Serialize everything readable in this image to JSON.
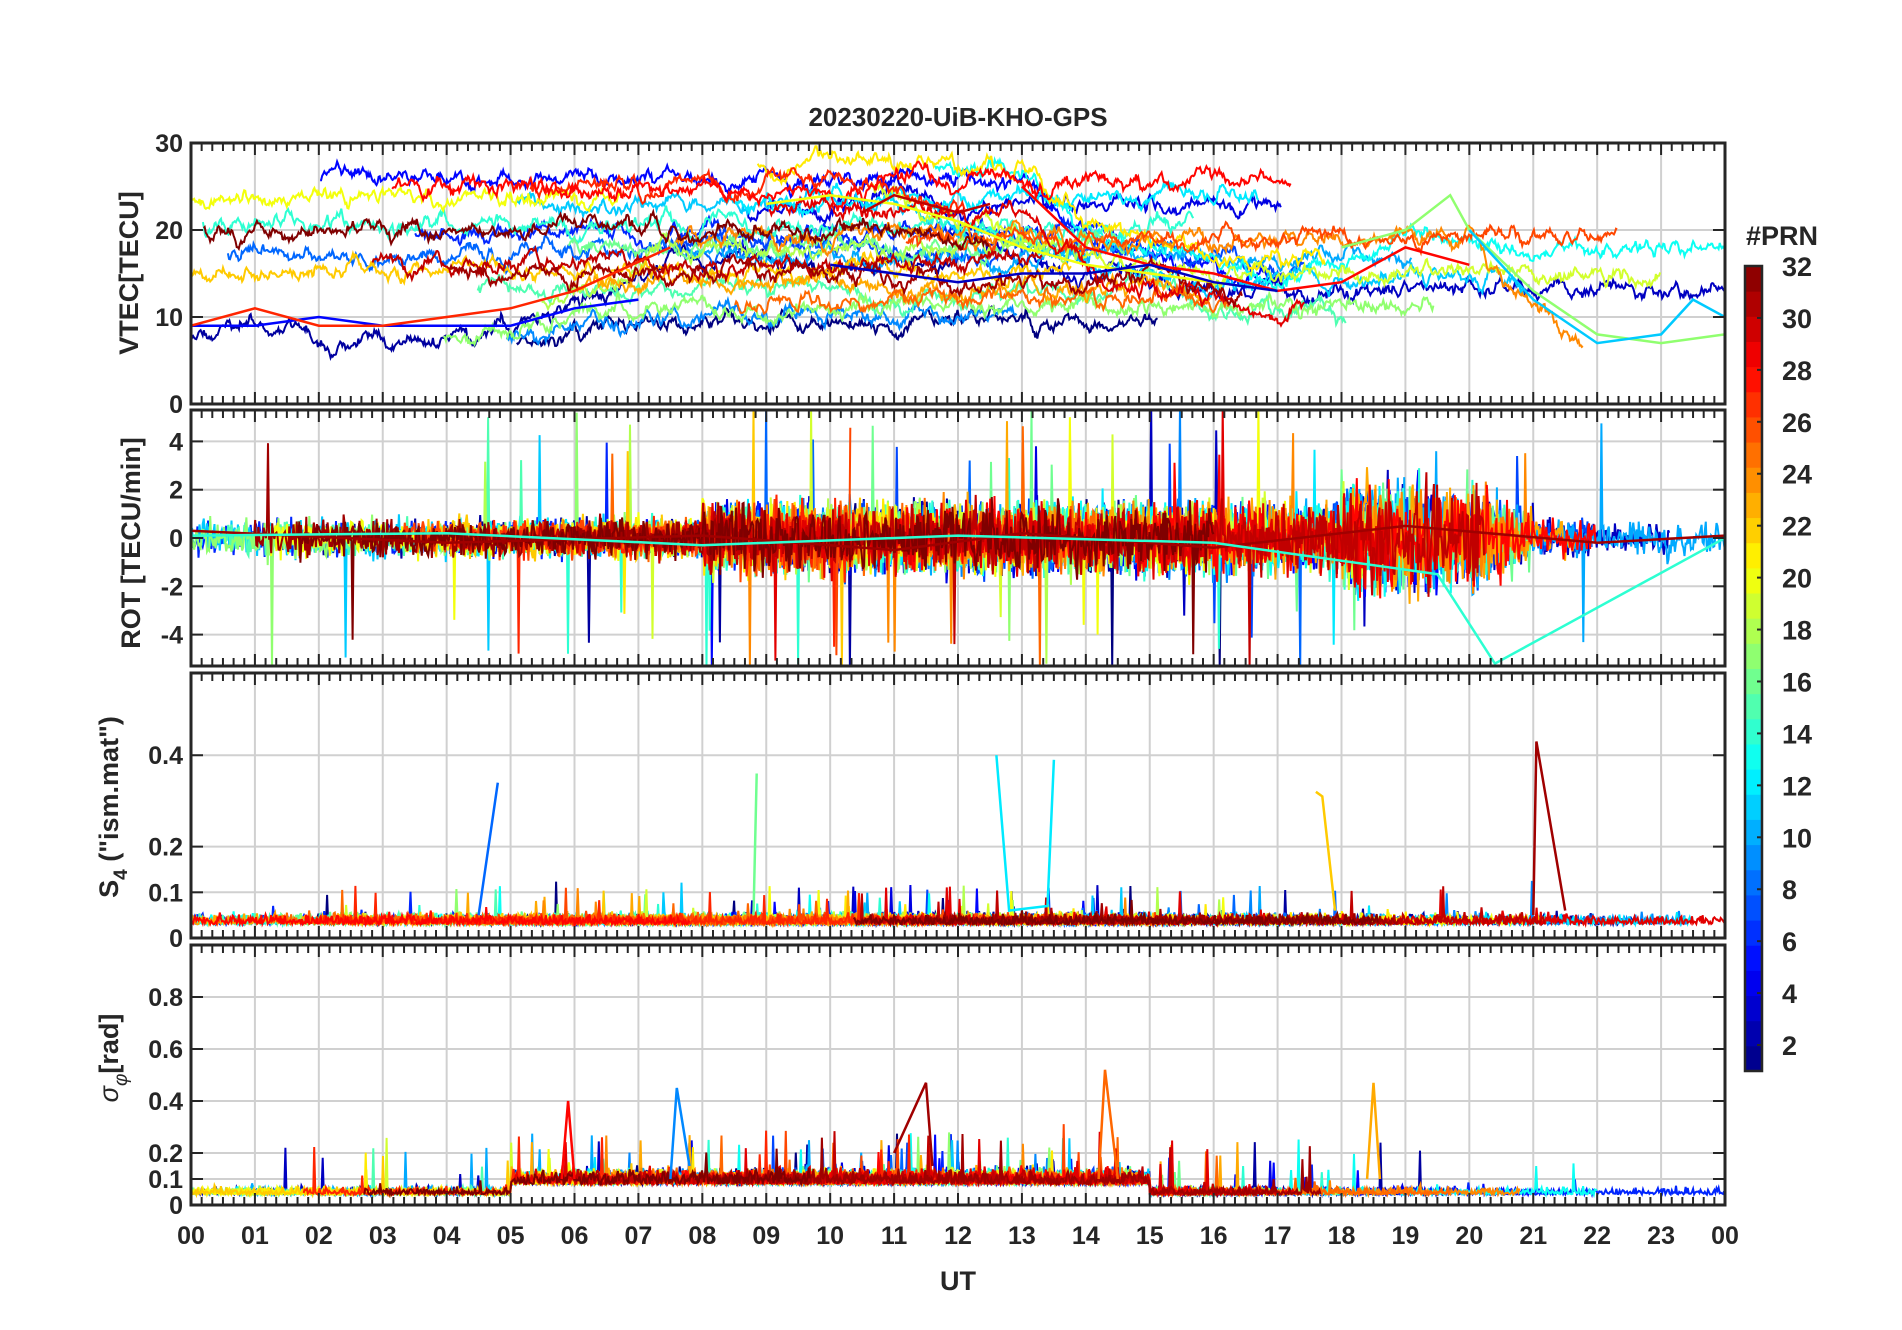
{
  "figure_title": "20230220-UiB-KHO-GPS",
  "x_axis": {
    "label": "UT",
    "ticks": [
      "00",
      "01",
      "02",
      "03",
      "04",
      "05",
      "06",
      "07",
      "08",
      "09",
      "10",
      "11",
      "12",
      "13",
      "14",
      "15",
      "16",
      "17",
      "18",
      "19",
      "20",
      "21",
      "22",
      "23",
      "00"
    ],
    "range_hours": [
      0,
      24
    ]
  },
  "colorbar": {
    "title": "#PRN",
    "range": [
      1,
      32
    ],
    "ticks": [
      "2",
      "4",
      "6",
      "8",
      "10",
      "12",
      "14",
      "16",
      "18",
      "20",
      "22",
      "24",
      "26",
      "28",
      "30",
      "32"
    ],
    "colormap": "jet",
    "levels": 32
  },
  "panels": [
    {
      "id": "vtec",
      "ylabel": "VTEC[TECU]",
      "ylim": [
        0,
        30
      ],
      "ytick_labels": [
        "0",
        "10",
        "20",
        "30"
      ],
      "yticks": [
        0,
        10,
        20,
        30
      ],
      "grid": true
    },
    {
      "id": "rot",
      "ylabel": "ROT [TECU/min]",
      "ylim": [
        -5.3,
        5.3
      ],
      "ytick_labels": [
        "-4",
        "-2",
        "0",
        "2",
        "4"
      ],
      "yticks": [
        -4,
        -2,
        0,
        2,
        4
      ],
      "grid": true
    },
    {
      "id": "s4",
      "ylabel_main": "S",
      "ylabel_sub": "4",
      "ylabel_rest": " (\"ism.mat\")",
      "ylim": [
        0,
        0.58
      ],
      "ytick_labels": [
        "0",
        "0.1",
        "0.2",
        "0.4"
      ],
      "yticks": [
        0,
        0.1,
        0.2,
        0.4
      ],
      "grid": true
    },
    {
      "id": "sigphi",
      "ylabel_main": "σ",
      "ylabel_sub": "φ",
      "ylabel_rest": "[rad]",
      "ylim": [
        0,
        1
      ],
      "ytick_labels": [
        "0",
        "0.1",
        "0.2",
        "0.4",
        "0.6",
        "0.8"
      ],
      "yticks": [
        0,
        0.1,
        0.2,
        0.4,
        0.6,
        0.8
      ],
      "grid": true
    }
  ],
  "chart_data": [
    {
      "type": "line",
      "title": "20230220-UiB-KHO-GPS",
      "ylabel": "VTEC[TECU]",
      "xlabel": "",
      "xlim": [
        0,
        24
      ],
      "ylim": [
        0,
        30
      ],
      "color_by": "#PRN",
      "series": [
        {
          "prn": 5,
          "x": [
            0,
            1,
            2,
            3,
            4,
            5,
            6,
            7
          ],
          "y": [
            9,
            9,
            10,
            9,
            9,
            9,
            11,
            12
          ]
        },
        {
          "prn": 27,
          "x": [
            0,
            1,
            2,
            3,
            4,
            5,
            6,
            7.5
          ],
          "y": [
            9,
            11,
            9,
            9,
            10,
            11,
            13,
            18
          ]
        },
        {
          "prn": 20,
          "x": [
            9,
            10,
            11,
            12,
            13,
            14,
            15,
            16
          ],
          "y": [
            23,
            24,
            23,
            21,
            18,
            16,
            15,
            14
          ]
        },
        {
          "prn": 30,
          "x": [
            10.5,
            11,
            11.5,
            12,
            12.5
          ],
          "y": [
            22,
            24,
            23,
            22,
            23
          ]
        },
        {
          "prn": 28,
          "x": [
            13,
            14,
            15,
            16,
            17,
            18,
            19,
            20
          ],
          "y": [
            25,
            18,
            16,
            15,
            13,
            14,
            18,
            16
          ]
        },
        {
          "prn": 17,
          "x": [
            18,
            19,
            19.7,
            20,
            21,
            22,
            23,
            24
          ],
          "y": [
            18,
            20,
            24,
            20,
            13,
            8,
            7,
            8
          ]
        },
        {
          "prn": 3,
          "x": [
            10,
            11,
            12,
            13,
            14,
            15,
            16,
            17
          ],
          "y": [
            16,
            15,
            14,
            15,
            15,
            16,
            14,
            13
          ]
        },
        {
          "prn": 11,
          "x": [
            20,
            21,
            22,
            23,
            23.5,
            24
          ],
          "y": [
            20,
            12,
            7,
            8,
            12,
            10
          ]
        }
      ]
    },
    {
      "type": "line",
      "ylabel": "ROT [TECU/min]",
      "xlim": [
        0,
        24
      ],
      "ylim": [
        -5.3,
        5.3
      ],
      "color_by": "#PRN",
      "series": [
        {
          "prn": 31,
          "x": [
            0,
            4,
            8,
            11,
            13,
            16,
            19,
            22,
            24
          ],
          "y": [
            0.3,
            -0.2,
            0.1,
            -0.5,
            0.2,
            -0.4,
            0.5,
            -0.2,
            0.1
          ]
        },
        {
          "prn": 14,
          "x": [
            0,
            4,
            8,
            12,
            16,
            19.5,
            20.4,
            24
          ],
          "y": [
            0.1,
            0.2,
            -0.3,
            0.1,
            -0.2,
            -1.5,
            -5.2,
            0
          ]
        }
      ]
    },
    {
      "type": "line",
      "ylabel": "S4 (\"ism.mat\")",
      "xlim": [
        0,
        24
      ],
      "ylim": [
        0,
        0.58
      ],
      "color_by": "#PRN",
      "series": [
        {
          "prn": 8,
          "x": [
            4.5,
            4.8
          ],
          "y": [
            0.05,
            0.34
          ]
        },
        {
          "prn": 12,
          "x": [
            12.6,
            12.8,
            13.4,
            13.5
          ],
          "y": [
            0.4,
            0.06,
            0.07,
            0.39
          ]
        },
        {
          "prn": 22,
          "x": [
            17.6,
            17.7,
            17.9
          ],
          "y": [
            0.32,
            0.31,
            0.06
          ]
        },
        {
          "prn": 31,
          "x": [
            21,
            21.05,
            21.5
          ],
          "y": [
            0.05,
            0.43,
            0.06
          ]
        },
        {
          "prn": 16,
          "x": [
            8.8,
            8.85
          ],
          "y": [
            0.05,
            0.36
          ]
        }
      ]
    },
    {
      "type": "line",
      "ylabel": "σφ [rad]",
      "xlim": [
        0,
        24
      ],
      "ylim": [
        0,
        1
      ],
      "color_by": "#PRN",
      "series": [
        {
          "prn": 9,
          "x": [
            7.5,
            7.6,
            7.8
          ],
          "y": [
            0.1,
            0.45,
            0.15
          ]
        },
        {
          "prn": 31,
          "x": [
            11,
            11.5,
            11.6
          ],
          "y": [
            0.2,
            0.47,
            0.15
          ]
        },
        {
          "prn": 25,
          "x": [
            14.2,
            14.3,
            14.5
          ],
          "y": [
            0.1,
            0.52,
            0.1
          ]
        },
        {
          "prn": 23,
          "x": [
            18.4,
            18.5,
            18.6
          ],
          "y": [
            0.1,
            0.47,
            0.1
          ]
        },
        {
          "prn": 28,
          "x": [
            5.8,
            5.9,
            6.0
          ],
          "y": [
            0.1,
            0.4,
            0.1
          ]
        }
      ]
    }
  ]
}
